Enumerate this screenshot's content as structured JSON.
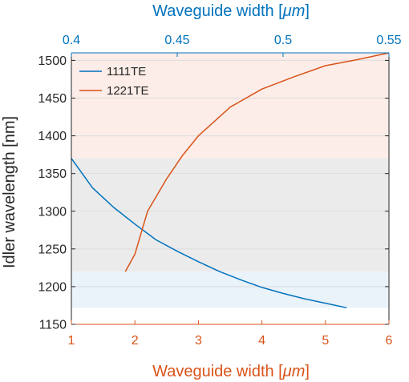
{
  "chart_data": {
    "type": "line",
    "title": "",
    "colors": {
      "series_1111TE": "#0072BD",
      "series_1221TE": "#D95319",
      "band_top": "#FCEDE8",
      "band_middle": "#EBEBEB",
      "band_bottom": "#EAF2FA",
      "axis_dark": "#262626"
    },
    "bottom_axis": {
      "label_prefix": "Waveguide width [",
      "label_unit": "μm",
      "label_suffix": "]",
      "range": [
        1,
        6
      ],
      "ticks": [
        "1",
        "2",
        "3",
        "4",
        "5",
        "6"
      ]
    },
    "top_axis": {
      "label_prefix": "Waveguide width [",
      "label_unit": "μm",
      "label_suffix": "]",
      "range": [
        0.4,
        0.55
      ],
      "ticks": [
        "0.4",
        "0.45",
        "0.5",
        "0.55"
      ]
    },
    "y_axis": {
      "label": "Idler wavelength [nm]",
      "range": [
        1150,
        1510
      ],
      "ticks": [
        "1150",
        "1200",
        "1250",
        "1300",
        "1350",
        "1400",
        "1450",
        "1500"
      ],
      "grid": true
    },
    "bands": [
      {
        "y_from": 1370,
        "y_to": 1510,
        "color_key": "band_top"
      },
      {
        "y_from": 1220,
        "y_to": 1370,
        "color_key": "band_middle"
      },
      {
        "y_from": 1172,
        "y_to": 1220,
        "color_key": "band_bottom"
      }
    ],
    "legend_position": "top-left",
    "series": [
      {
        "name": "1111TE",
        "axis": "top",
        "color_key": "series_1111TE",
        "x": [
          0.4,
          0.41,
          0.42,
          0.43,
          0.44,
          0.45,
          0.46,
          0.47,
          0.48,
          0.49,
          0.5,
          0.51,
          0.52,
          0.53
        ],
        "y": [
          1370,
          1331,
          1305,
          1283,
          1262,
          1247,
          1233,
          1220,
          1209,
          1199,
          1191,
          1184,
          1178,
          1172
        ]
      },
      {
        "name": "1221TE",
        "axis": "bottom",
        "color_key": "series_1221TE",
        "x": [
          1.85,
          2.0,
          2.2,
          2.5,
          2.75,
          3.0,
          3.5,
          4.0,
          4.5,
          5.0,
          5.5,
          6.0
        ],
        "y": [
          1220,
          1243,
          1300,
          1343,
          1374,
          1400,
          1438,
          1462,
          1478,
          1493,
          1501,
          1510
        ]
      }
    ]
  }
}
